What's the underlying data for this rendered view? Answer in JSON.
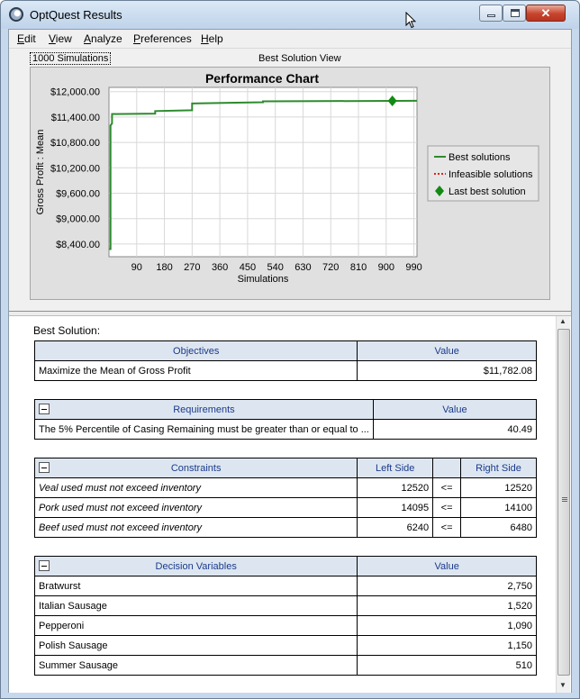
{
  "window": {
    "title": "OptQuest Results"
  },
  "menu": {
    "items": [
      {
        "label": "Edit",
        "ul": "E",
        "rest": "dit"
      },
      {
        "label": "View",
        "ul": "V",
        "rest": "iew"
      },
      {
        "label": "Analyze",
        "ul": "A",
        "rest": "nalyze"
      },
      {
        "label": "Preferences",
        "ul": "P",
        "rest": "references"
      },
      {
        "label": "Help",
        "ul": "H",
        "rest": "elp"
      }
    ]
  },
  "toolbar": {
    "simulations_label": "1000 Simulations",
    "view_label": "Best Solution View"
  },
  "chart_data": {
    "type": "line",
    "title": "Performance Chart",
    "xlabel": "Simulations",
    "ylabel": "Gross Profit : Mean",
    "xlim": [
      0,
      1000
    ],
    "ylim": [
      8100,
      12100
    ],
    "x_ticks": [
      90,
      180,
      270,
      360,
      450,
      540,
      630,
      720,
      810,
      900,
      990
    ],
    "y_ticks": [
      8400,
      9000,
      9600,
      10200,
      10800,
      11400,
      12000
    ],
    "y_tick_labels": [
      "$8,400.00",
      "$9,000.00",
      "$9,600.00",
      "$10,200.00",
      "$10,800.00",
      "$11,400.00",
      "$12,000.00"
    ],
    "grid": true,
    "legend_position": "right",
    "series": [
      {
        "name": "Best solutions",
        "color": "#2e8b2e",
        "style": "solid",
        "x": [
          1,
          5,
          5,
          10,
          10,
          150,
          150,
          270,
          270,
          500,
          500,
          1000
        ],
        "y": [
          8280,
          8280,
          11200,
          11250,
          11470,
          11480,
          11540,
          11560,
          11720,
          11750,
          11770,
          11782
        ]
      },
      {
        "name": "Infeasible solutions",
        "color": "#e02020",
        "style": "dotted",
        "x": [],
        "y": []
      },
      {
        "name": "Last best solution",
        "color": "#138a13",
        "style": "marker",
        "x": [
          920
        ],
        "y": [
          11782
        ]
      }
    ]
  },
  "results": {
    "best_label": "Best Solution:",
    "objectives": {
      "headers": [
        "Objectives",
        "Value"
      ],
      "rows": [
        {
          "name": "Maximize the Mean of Gross Profit",
          "value": "$11,782.08"
        }
      ]
    },
    "requirements": {
      "headers": [
        "Requirements",
        "Value"
      ],
      "rows": [
        {
          "name": "The 5% Percentile of Casing Remaining must be greater than or equal to ...",
          "value": "40.49"
        }
      ]
    },
    "constraints": {
      "headers": [
        "Constraints",
        "Left Side",
        "Right Side"
      ],
      "rows": [
        {
          "name": "Veal used must not exceed inventory",
          "left": "12520",
          "op": "<=",
          "right": "12520"
        },
        {
          "name": "Pork used must not exceed inventory",
          "left": "14095",
          "op": "<=",
          "right": "14100"
        },
        {
          "name": "Beef used must not exceed inventory",
          "left": "6240",
          "op": "<=",
          "right": "6480"
        }
      ]
    },
    "decision_variables": {
      "headers": [
        "Decision Variables",
        "Value"
      ],
      "rows": [
        {
          "name": "Bratwurst",
          "value": "2,750"
        },
        {
          "name": "Italian Sausage",
          "value": "1,520"
        },
        {
          "name": "Pepperoni",
          "value": "1,090"
        },
        {
          "name": "Polish Sausage",
          "value": "1,150"
        },
        {
          "name": "Summer Sausage",
          "value": "510"
        }
      ]
    }
  }
}
